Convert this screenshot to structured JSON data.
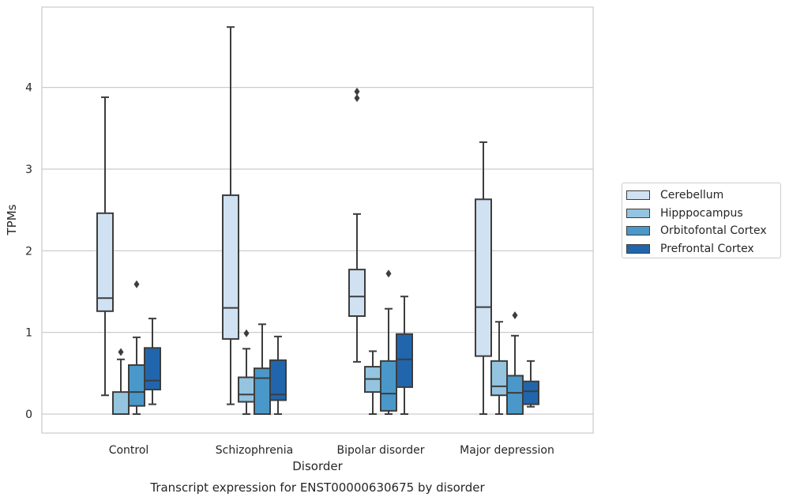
{
  "chart_data": {
    "type": "box",
    "title": "Transcript expression for ENST00000630675 by disorder",
    "xlabel": "Disorder",
    "ylabel": "TPMs",
    "categories": [
      "Control",
      "Schizophrenia",
      "Bipolar disorder",
      "Major depression"
    ],
    "ylim": [
      -0.23,
      4.97
    ],
    "yticks": [
      {
        "value": 0,
        "label": "0"
      },
      {
        "value": 1,
        "label": "1"
      },
      {
        "value": 2,
        "label": "2"
      },
      {
        "value": 3,
        "label": "3"
      },
      {
        "value": 4,
        "label": "4"
      }
    ],
    "grid": "horizontal",
    "legend_position": "right",
    "series": [
      {
        "name": "Cerebellum",
        "color": "#d0e1f2",
        "boxes": [
          {
            "whisker_low": 0.23,
            "q1": 1.26,
            "median": 1.42,
            "q3": 2.46,
            "whisker_high": 3.88,
            "outliers": []
          },
          {
            "whisker_low": 0.12,
            "q1": 0.92,
            "median": 1.3,
            "q3": 2.68,
            "whisker_high": 4.74,
            "outliers": []
          },
          {
            "whisker_low": 0.64,
            "q1": 1.2,
            "median": 1.44,
            "q3": 1.77,
            "whisker_high": 2.45,
            "outliers": [
              3.87,
              3.95
            ]
          },
          {
            "whisker_low": 0.0,
            "q1": 0.71,
            "median": 1.31,
            "q3": 2.63,
            "whisker_high": 3.33,
            "outliers": []
          }
        ]
      },
      {
        "name": "Hipppocampus",
        "color": "#94c4df",
        "boxes": [
          {
            "whisker_low": 0.0,
            "q1": 0.0,
            "median": 0.0,
            "q3": 0.27,
            "whisker_high": 0.67,
            "outliers": [
              0.76
            ]
          },
          {
            "whisker_low": 0.0,
            "q1": 0.15,
            "median": 0.24,
            "q3": 0.45,
            "whisker_high": 0.8,
            "outliers": [
              0.99
            ]
          },
          {
            "whisker_low": 0.0,
            "q1": 0.27,
            "median": 0.43,
            "q3": 0.58,
            "whisker_high": 0.77,
            "outliers": []
          },
          {
            "whisker_low": 0.0,
            "q1": 0.23,
            "median": 0.34,
            "q3": 0.65,
            "whisker_high": 1.13,
            "outliers": []
          }
        ]
      },
      {
        "name": "Orbitofontal Cortex",
        "color": "#4a98c9",
        "boxes": [
          {
            "whisker_low": 0.0,
            "q1": 0.1,
            "median": 0.27,
            "q3": 0.6,
            "whisker_high": 0.94,
            "outliers": [
              1.59
            ]
          },
          {
            "whisker_low": 0.0,
            "q1": 0.0,
            "median": 0.44,
            "q3": 0.56,
            "whisker_high": 1.1,
            "outliers": []
          },
          {
            "whisker_low": 0.0,
            "q1": 0.04,
            "median": 0.25,
            "q3": 0.65,
            "whisker_high": 1.29,
            "outliers": [
              1.72
            ]
          },
          {
            "whisker_low": 0.0,
            "q1": 0.0,
            "median": 0.26,
            "q3": 0.47,
            "whisker_high": 0.96,
            "outliers": [
              1.21
            ]
          }
        ]
      },
      {
        "name": "Prefrontal Cortex",
        "color": "#2166ac",
        "boxes": [
          {
            "whisker_low": 0.12,
            "q1": 0.3,
            "median": 0.41,
            "q3": 0.81,
            "whisker_high": 1.17,
            "outliers": []
          },
          {
            "whisker_low": 0.0,
            "q1": 0.17,
            "median": 0.24,
            "q3": 0.66,
            "whisker_high": 0.95,
            "outliers": []
          },
          {
            "whisker_low": 0.0,
            "q1": 0.33,
            "median": 0.67,
            "q3": 0.98,
            "whisker_high": 1.44,
            "outliers": []
          },
          {
            "whisker_low": 0.09,
            "q1": 0.12,
            "median": 0.28,
            "q3": 0.4,
            "whisker_high": 0.65,
            "outliers": []
          }
        ]
      }
    ]
  }
}
